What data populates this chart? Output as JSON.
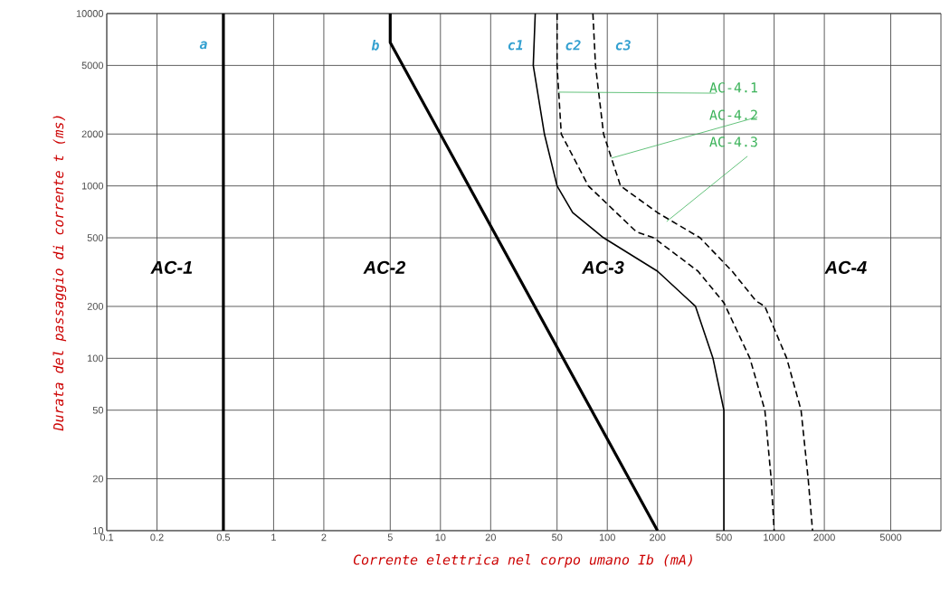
{
  "chart_data": {
    "type": "line",
    "xlabel": "Corrente elettrica nel corpo umano Ib (mA)",
    "ylabel": "Durata del passaggio di corrente t (ms)",
    "log": "xy",
    "grid": true,
    "marker": "none",
    "xlim": [
      0.1,
      10000
    ],
    "ylim": [
      10,
      10000
    ],
    "xticks": [
      0.1,
      0.2,
      0.5,
      1,
      2,
      5,
      10,
      20,
      50,
      100,
      200,
      500,
      1000,
      2000,
      5000
    ],
    "yticks": [
      10,
      20,
      50,
      100,
      200,
      500,
      1000,
      2000,
      5000,
      10000
    ],
    "series": [
      {
        "color": "#000000",
        "line_style": "solid",
        "x": [
          0.5,
          0.5
        ],
        "values": [
          10,
          10000
        ]
      },
      {
        "color": "#000000",
        "line_style": "solid",
        "x": [
          5,
          5,
          200
        ],
        "values": [
          10000,
          6800,
          10
        ]
      },
      {
        "color": "#000000",
        "line_style": "solid",
        "x": [
          37,
          36,
          42,
          50,
          62,
          95,
          200,
          338,
          430,
          500,
          500
        ],
        "values": [
          10000,
          5000,
          2000,
          1000,
          700,
          500,
          320,
          200,
          100,
          50,
          10
        ]
      },
      {
        "color": "#000000",
        "line_style": "dashed",
        "x": [
          50,
          50,
          53,
          77,
          150,
          190,
          350,
          500,
          716,
          880,
          960,
          1000
        ],
        "values": [
          10000,
          5000,
          2000,
          1000,
          540,
          500,
          320,
          210,
          100,
          50,
          20,
          10
        ]
      },
      {
        "color": "#000000",
        "line_style": "dashed",
        "x": [
          82,
          85,
          95,
          120,
          200,
          360,
          560,
          780,
          880,
          1190,
          1450,
          1600,
          1700
        ],
        "values": [
          10000,
          5000,
          2000,
          1000,
          700,
          500,
          320,
          215,
          200,
          100,
          50,
          20,
          10
        ]
      }
    ],
    "annotations": [
      "a",
      "b",
      "c1",
      "c2",
      "c3",
      "AC-1",
      "AC-2",
      "AC-3",
      "AC-4",
      {
        "text": "AC-4.1",
        "x": 51,
        "y": 3500
      },
      {
        "text": "AC-4.2",
        "x": 106,
        "y": 1450
      },
      {
        "text": "AC-4.3",
        "x": 227,
        "y": 622
      }
    ]
  }
}
